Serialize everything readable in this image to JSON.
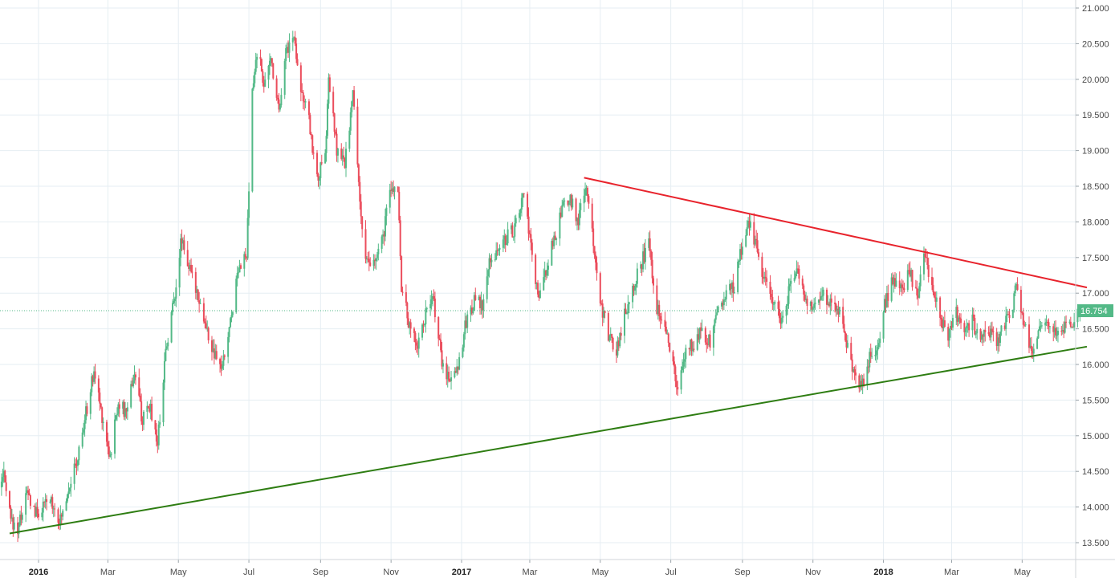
{
  "chart_data": {
    "type": "candlestick",
    "ylim": [
      13.4,
      21.05
    ],
    "y_ticks": [
      "13.500",
      "14.000",
      "14.500",
      "15.000",
      "15.500",
      "16.000",
      "16.500",
      "17.000",
      "17.500",
      "18.000",
      "18.500",
      "19.000",
      "19.500",
      "20.000",
      "20.500",
      "21.000"
    ],
    "x_ticks": [
      {
        "label": "2016",
        "date": "2016-01-01",
        "year": true
      },
      {
        "label": "Mar",
        "date": "2016-03-01",
        "year": false
      },
      {
        "label": "May",
        "date": "2016-05-01",
        "year": false
      },
      {
        "label": "Jul",
        "date": "2016-07-01",
        "year": false
      },
      {
        "label": "Sep",
        "date": "2016-09-01",
        "year": false
      },
      {
        "label": "Nov",
        "date": "2016-11-01",
        "year": false
      },
      {
        "label": "2017",
        "date": "2017-01-01",
        "year": true
      },
      {
        "label": "Mar",
        "date": "2017-03-01",
        "year": false
      },
      {
        "label": "May",
        "date": "2017-05-01",
        "year": false
      },
      {
        "label": "Jul",
        "date": "2017-07-01",
        "year": false
      },
      {
        "label": "Sep",
        "date": "2017-09-01",
        "year": false
      },
      {
        "label": "Nov",
        "date": "2017-11-01",
        "year": false
      },
      {
        "label": "2018",
        "date": "2018-01-01",
        "year": true
      },
      {
        "label": "Mar",
        "date": "2018-03-01",
        "year": false
      },
      {
        "label": "May",
        "date": "2018-05-01",
        "year": false
      }
    ],
    "grid": true,
    "current_price": 16.754,
    "current_price_label": "16.754",
    "price_path": [
      [
        "2015-11-16",
        14.3
      ],
      [
        "2015-11-25",
        14.0
      ],
      [
        "2015-12-01",
        14.5
      ],
      [
        "2015-12-08",
        13.8
      ],
      [
        "2015-12-14",
        13.7
      ],
      [
        "2015-12-22",
        14.2
      ],
      [
        "2015-12-30",
        13.9
      ],
      [
        "2016-01-12",
        14.1
      ],
      [
        "2016-01-20",
        13.8
      ],
      [
        "2016-01-27",
        14.3
      ],
      [
        "2016-02-03",
        14.6
      ],
      [
        "2016-02-12",
        15.4
      ],
      [
        "2016-02-18",
        15.9
      ],
      [
        "2016-02-26",
        15.2
      ],
      [
        "2016-03-03",
        14.7
      ],
      [
        "2016-03-10",
        15.5
      ],
      [
        "2016-03-16",
        15.3
      ],
      [
        "2016-03-24",
        15.9
      ],
      [
        "2016-03-31",
        15.2
      ],
      [
        "2016-04-07",
        15.4
      ],
      [
        "2016-04-13",
        14.9
      ],
      [
        "2016-04-20",
        16.2
      ],
      [
        "2016-04-27",
        16.9
      ],
      [
        "2016-05-04",
        17.8
      ],
      [
        "2016-05-11",
        17.3
      ],
      [
        "2016-05-18",
        17.0
      ],
      [
        "2016-05-25",
        16.5
      ],
      [
        "2016-06-01",
        16.1
      ],
      [
        "2016-06-08",
        15.95
      ],
      [
        "2016-06-15",
        16.6
      ],
      [
        "2016-06-22",
        17.4
      ],
      [
        "2016-06-29",
        17.5
      ],
      [
        "2016-07-04",
        19.8
      ],
      [
        "2016-07-08",
        20.4
      ],
      [
        "2016-07-15",
        19.9
      ],
      [
        "2016-07-20",
        20.3
      ],
      [
        "2016-07-27",
        19.6
      ],
      [
        "2016-08-02",
        20.4
      ],
      [
        "2016-08-09",
        20.6
      ],
      [
        "2016-08-16",
        19.8
      ],
      [
        "2016-08-22",
        19.4
      ],
      [
        "2016-08-29",
        18.6
      ],
      [
        "2016-09-05",
        18.9
      ],
      [
        "2016-09-08",
        20.0
      ],
      [
        "2016-09-15",
        19.0
      ],
      [
        "2016-09-22",
        18.8
      ],
      [
        "2016-09-29",
        19.8
      ],
      [
        "2016-10-06",
        18.1
      ],
      [
        "2016-10-10",
        17.4
      ],
      [
        "2016-10-17",
        17.4
      ],
      [
        "2016-10-24",
        17.7
      ],
      [
        "2016-10-31",
        18.4
      ],
      [
        "2016-11-07",
        18.5
      ],
      [
        "2016-11-10",
        17.1
      ],
      [
        "2016-11-17",
        16.5
      ],
      [
        "2016-11-24",
        16.3
      ],
      [
        "2016-12-01",
        16.7
      ],
      [
        "2016-12-08",
        16.9
      ],
      [
        "2016-12-15",
        16.0
      ],
      [
        "2016-12-22",
        15.8
      ],
      [
        "2016-12-29",
        16.0
      ],
      [
        "2017-01-05",
        16.6
      ],
      [
        "2017-01-12",
        16.9
      ],
      [
        "2017-01-19",
        16.8
      ],
      [
        "2017-01-26",
        17.5
      ],
      [
        "2017-02-02",
        17.6
      ],
      [
        "2017-02-09",
        17.8
      ],
      [
        "2017-02-16",
        17.9
      ],
      [
        "2017-02-24",
        18.4
      ],
      [
        "2017-03-02",
        17.6
      ],
      [
        "2017-03-09",
        16.9
      ],
      [
        "2017-03-16",
        17.4
      ],
      [
        "2017-03-23",
        17.8
      ],
      [
        "2017-03-30",
        18.2
      ],
      [
        "2017-04-06",
        18.3
      ],
      [
        "2017-04-12",
        18.0
      ],
      [
        "2017-04-18",
        18.5
      ],
      [
        "2017-04-24",
        17.9
      ],
      [
        "2017-05-01",
        16.9
      ],
      [
        "2017-05-08",
        16.4
      ],
      [
        "2017-05-15",
        16.2
      ],
      [
        "2017-05-22",
        16.7
      ],
      [
        "2017-05-29",
        17.1
      ],
      [
        "2017-06-05",
        17.4
      ],
      [
        "2017-06-12",
        17.7
      ],
      [
        "2017-06-19",
        16.8
      ],
      [
        "2017-06-26",
        16.6
      ],
      [
        "2017-07-03",
        16.0
      ],
      [
        "2017-07-07",
        15.6
      ],
      [
        "2017-07-14",
        16.2
      ],
      [
        "2017-07-21",
        16.3
      ],
      [
        "2017-07-28",
        16.5
      ],
      [
        "2017-08-04",
        16.3
      ],
      [
        "2017-08-11",
        16.8
      ],
      [
        "2017-08-18",
        17.0
      ],
      [
        "2017-08-25",
        17.1
      ],
      [
        "2017-09-01",
        17.7
      ],
      [
        "2017-09-07",
        18.0
      ],
      [
        "2017-09-14",
        17.6
      ],
      [
        "2017-09-21",
        17.1
      ],
      [
        "2017-09-28",
        16.9
      ],
      [
        "2017-10-05",
        16.6
      ],
      [
        "2017-10-12",
        17.1
      ],
      [
        "2017-10-19",
        17.3
      ],
      [
        "2017-10-26",
        16.9
      ],
      [
        "2017-11-02",
        16.8
      ],
      [
        "2017-11-09",
        17.0
      ],
      [
        "2017-11-16",
        16.9
      ],
      [
        "2017-11-23",
        16.8
      ],
      [
        "2017-11-30",
        16.3
      ],
      [
        "2017-12-07",
        15.85
      ],
      [
        "2017-12-13",
        15.7
      ],
      [
        "2017-12-20",
        16.1
      ],
      [
        "2017-12-27",
        16.3
      ],
      [
        "2018-01-03",
        16.9
      ],
      [
        "2018-01-10",
        17.2
      ],
      [
        "2018-01-17",
        17.0
      ],
      [
        "2018-01-24",
        17.3
      ],
      [
        "2018-01-30",
        16.9
      ],
      [
        "2018-02-05",
        17.5
      ],
      [
        "2018-02-12",
        17.2
      ],
      [
        "2018-02-19",
        16.6
      ],
      [
        "2018-02-26",
        16.4
      ],
      [
        "2018-03-05",
        16.7
      ],
      [
        "2018-03-12",
        16.4
      ],
      [
        "2018-03-19",
        16.6
      ],
      [
        "2018-03-26",
        16.3
      ],
      [
        "2018-04-02",
        16.5
      ],
      [
        "2018-04-09",
        16.3
      ],
      [
        "2018-04-16",
        16.6
      ],
      [
        "2018-04-23",
        16.8
      ],
      [
        "2018-04-26",
        17.2
      ],
      [
        "2018-05-03",
        16.5
      ],
      [
        "2018-05-10",
        16.2
      ],
      [
        "2018-05-17",
        16.5
      ],
      [
        "2018-05-24",
        16.6
      ],
      [
        "2018-05-31",
        16.4
      ],
      [
        "2018-06-07",
        16.5
      ],
      [
        "2018-06-14",
        16.6
      ],
      [
        "2018-06-21",
        16.754
      ]
    ],
    "trendlines": [
      {
        "role": "resistance",
        "color": "#e8232c",
        "from": [
          "2017-04-17",
          18.62
        ],
        "to": [
          "2018-06-26",
          17.08
        ]
      },
      {
        "role": "support",
        "color": "#2e7d12",
        "from": [
          "2015-12-07",
          13.63
        ],
        "to": [
          "2018-06-26",
          16.25
        ]
      }
    ],
    "colors": {
      "up": "#53b987",
      "down": "#eb4d5c",
      "grid": "#e6eef3",
      "price_line": "#53b987",
      "price_label_bg": "#53b987"
    }
  }
}
